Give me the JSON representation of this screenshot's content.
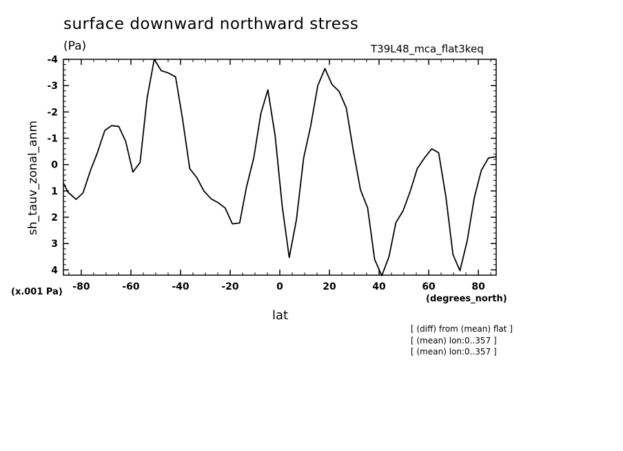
{
  "header": {
    "title": "surface downward northward stress",
    "units": "(Pa)",
    "run_id": "T39L48_mca_flat3keq"
  },
  "axes": {
    "y_label": "sh_tauv_zonal_anm",
    "y_scale_note": "(x.001 Pa)",
    "x_label": "lat",
    "x_units": "(degrees_north)"
  },
  "notes": [
    "[ (diff) from (mean) flat ]",
    "[ (mean) lon:0..357 ]",
    "[ (mean) lon:0..357 ]"
  ],
  "chart_data": {
    "type": "line",
    "title": "surface downward northward stress",
    "xlabel": "lat",
    "ylabel": "sh_tauv_zonal_anm",
    "xlim": [
      -87.2,
      87.2
    ],
    "ylim": [
      4.2,
      -4
    ],
    "y_inverted": true,
    "grid": false,
    "x_ticks": [
      -80,
      -60,
      -40,
      -20,
      0,
      20,
      40,
      60,
      80
    ],
    "x_tick_labels": [
      "-80",
      "-60",
      "-40",
      "-20",
      "0",
      "20",
      "40",
      "60",
      "80"
    ],
    "y_ticks": [
      -4,
      -3,
      -2,
      -1,
      0,
      1,
      2,
      3,
      4
    ],
    "y_tick_labels": [
      "-4",
      "-3",
      "-2",
      "-1",
      "0",
      "1",
      "2",
      "3",
      "4"
    ],
    "series": [
      {
        "x": [
          -87.2,
          -85.3,
          -82.1,
          -79.3,
          -76.2,
          -73.5,
          -70.5,
          -67.8,
          -64.9,
          -62.1,
          -59.2,
          -56.3,
          -53.5,
          -50.6,
          -47.8,
          -44.9,
          -42.0,
          -39.2,
          -36.3,
          -33.4,
          -30.6,
          -27.7,
          -24.8,
          -22.0,
          -19.1,
          -16.2,
          -13.4,
          -10.5,
          -7.6,
          -4.8,
          -1.9,
          1.0,
          3.8,
          6.7,
          9.6,
          12.4,
          15.3,
          18.2,
          21.0,
          23.9,
          26.8,
          29.6,
          32.5,
          35.4,
          38.2,
          41.1,
          44.0,
          46.8,
          49.7,
          52.6,
          55.4,
          58.3,
          61.2,
          64.0,
          66.9,
          69.8,
          72.6,
          75.5,
          78.4,
          81.2,
          84.1,
          87.2
        ],
        "values": [
          0.7,
          1.05,
          1.32,
          1.08,
          0.2,
          -0.45,
          -1.3,
          -1.48,
          -1.45,
          -0.88,
          0.28,
          -0.08,
          -2.52,
          -4.0,
          -3.57,
          -3.48,
          -3.33,
          -1.75,
          0.15,
          0.5,
          1.0,
          1.3,
          1.45,
          1.65,
          2.25,
          2.22,
          0.85,
          -0.25,
          -1.95,
          -2.84,
          -1.1,
          1.6,
          3.53,
          2.1,
          -0.25,
          -1.45,
          -3.0,
          -3.65,
          -3.05,
          -2.78,
          -2.15,
          -0.54,
          0.95,
          1.65,
          3.6,
          4.22,
          3.5,
          2.2,
          1.75,
          1.0,
          0.15,
          -0.25,
          -0.6,
          -0.45,
          1.2,
          3.42,
          4.03,
          2.9,
          1.25,
          0.22,
          -0.25,
          -0.3
        ]
      }
    ]
  }
}
